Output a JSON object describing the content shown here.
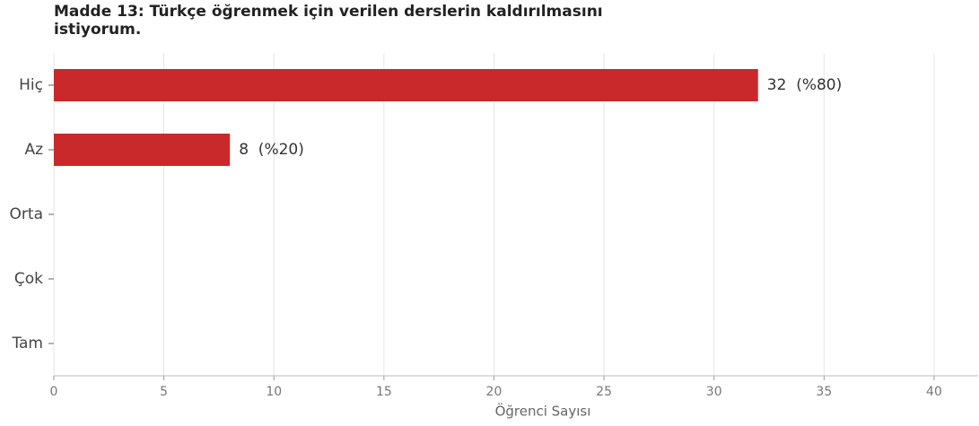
{
  "chart_data": {
    "type": "hbar",
    "title": "Madde 13: Türkçe öğrenmek için verilen derslerin kaldırılmasını istiyorum.",
    "categories": [
      "Hiç",
      "Az",
      "Orta",
      "Çok",
      "Tam"
    ],
    "values": [
      32,
      8,
      0,
      0,
      0
    ],
    "value_labels": [
      "32  (%80)",
      "8  (%20)",
      null,
      null,
      null
    ],
    "color": "#c9292b",
    "xlabel": "Öğrenci Sayısı",
    "xlim": [
      0,
      42
    ],
    "xticks": [
      0,
      5,
      10,
      15,
      20,
      25,
      30,
      35,
      40
    ],
    "grid": true
  }
}
